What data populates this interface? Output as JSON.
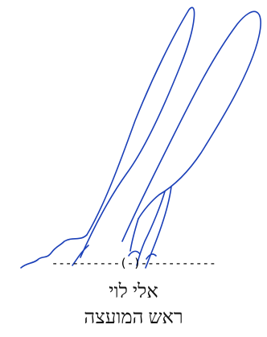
{
  "signature_block": {
    "signature_line": "----------(-)-----------",
    "signer_name": "אלי לוי",
    "signer_title": "ראש המועצה",
    "ink_color": "#1a3fb8"
  }
}
